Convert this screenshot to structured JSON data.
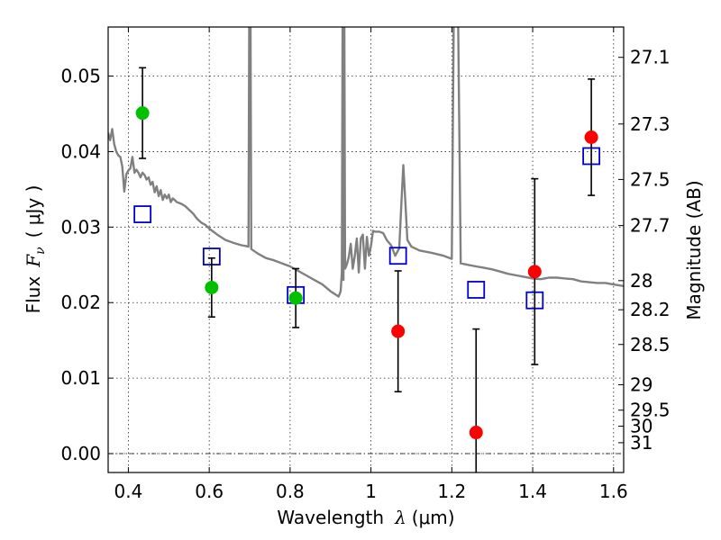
{
  "chart_data": {
    "type": "scatter",
    "xlabel": "Wavelength",
    "xlabel_symbol": "λ",
    "xlabel_unit": "(μm)",
    "ylabel": "Flux",
    "ylabel_symbol": "F",
    "ylabel_subscript": "ν",
    "ylabel_unit": "( μJy )",
    "y2label": "Magnitude (AB)",
    "xlim": [
      0.35,
      1.625
    ],
    "ylim": [
      -0.0025,
      0.0565
    ],
    "grid": true,
    "x_ticks": [
      {
        "value": 0.4,
        "label": "0.4"
      },
      {
        "value": 0.6,
        "label": "0.6"
      },
      {
        "value": 0.8,
        "label": "0.8"
      },
      {
        "value": 1.0,
        "label": "1"
      },
      {
        "value": 1.2,
        "label": "1.2"
      },
      {
        "value": 1.4,
        "label": "1.4"
      },
      {
        "value": 1.6,
        "label": "1.6"
      }
    ],
    "y_ticks": [
      {
        "value": 0.0,
        "label": "0.00"
      },
      {
        "value": 0.01,
        "label": "0.01"
      },
      {
        "value": 0.02,
        "label": "0.02"
      },
      {
        "value": 0.03,
        "label": "0.03"
      },
      {
        "value": 0.04,
        "label": "0.04"
      },
      {
        "value": 0.05,
        "label": "0.05"
      }
    ],
    "y2_ticks": [
      {
        "value": 27.1,
        "label": "27.1"
      },
      {
        "value": 27.3,
        "label": "27.3"
      },
      {
        "value": 27.5,
        "label": "27.5"
      },
      {
        "value": 27.7,
        "label": "27.7"
      },
      {
        "value": 28.0,
        "label": "28"
      },
      {
        "value": 28.2,
        "label": "28.2"
      },
      {
        "value": 28.5,
        "label": "28.5"
      },
      {
        "value": 29.0,
        "label": "29"
      },
      {
        "value": 29.5,
        "label": "29.5"
      },
      {
        "value": 30.0,
        "label": "30"
      },
      {
        "value": 31.0,
        "label": "31"
      }
    ],
    "model_spectrum": {
      "color": "#808080",
      "points": [
        [
          0.35,
          0.0425
        ],
        [
          0.355,
          0.0415
        ],
        [
          0.36,
          0.043
        ],
        [
          0.365,
          0.041
        ],
        [
          0.37,
          0.04
        ],
        [
          0.375,
          0.0395
        ],
        [
          0.38,
          0.0393
        ],
        [
          0.385,
          0.038
        ],
        [
          0.39,
          0.0347
        ],
        [
          0.395,
          0.037
        ],
        [
          0.4,
          0.0375
        ],
        [
          0.405,
          0.0378
        ],
        [
          0.41,
          0.0393
        ],
        [
          0.415,
          0.0372
        ],
        [
          0.42,
          0.0376
        ],
        [
          0.425,
          0.0372
        ],
        [
          0.43,
          0.0366
        ],
        [
          0.435,
          0.0372
        ],
        [
          0.44,
          0.0369
        ],
        [
          0.445,
          0.0363
        ],
        [
          0.45,
          0.0366
        ],
        [
          0.455,
          0.0356
        ],
        [
          0.46,
          0.036
        ],
        [
          0.465,
          0.0346
        ],
        [
          0.47,
          0.0354
        ],
        [
          0.475,
          0.0341
        ],
        [
          0.48,
          0.0349
        ],
        [
          0.485,
          0.0336
        ],
        [
          0.49,
          0.0343
        ],
        [
          0.495,
          0.0338
        ],
        [
          0.5,
          0.0343
        ],
        [
          0.505,
          0.0333
        ],
        [
          0.51,
          0.0338
        ],
        [
          0.52,
          0.0333
        ],
        [
          0.53,
          0.0331
        ],
        [
          0.54,
          0.0328
        ],
        [
          0.55,
          0.0323
        ],
        [
          0.56,
          0.0318
        ],
        [
          0.57,
          0.0311
        ],
        [
          0.58,
          0.0306
        ],
        [
          0.59,
          0.0303
        ],
        [
          0.6,
          0.0298
        ],
        [
          0.62,
          0.029
        ],
        [
          0.64,
          0.0283
        ],
        [
          0.66,
          0.0279
        ],
        [
          0.68,
          0.0276
        ],
        [
          0.69,
          0.0275
        ],
        [
          0.697,
          0.0274
        ],
        [
          0.699,
          0.06
        ],
        [
          0.702,
          0.06
        ],
        [
          0.704,
          0.0271
        ],
        [
          0.72,
          0.0265
        ],
        [
          0.74,
          0.0259
        ],
        [
          0.76,
          0.0256
        ],
        [
          0.78,
          0.0252
        ],
        [
          0.8,
          0.0248
        ],
        [
          0.82,
          0.0242
        ],
        [
          0.84,
          0.0236
        ],
        [
          0.86,
          0.023
        ],
        [
          0.88,
          0.0224
        ],
        [
          0.9,
          0.0215
        ],
        [
          0.92,
          0.0208
        ],
        [
          0.925,
          0.0215
        ],
        [
          0.928,
          0.024
        ],
        [
          0.93,
          0.06
        ],
        [
          0.932,
          0.023
        ],
        [
          0.934,
          0.06
        ],
        [
          0.936,
          0.0245
        ],
        [
          0.94,
          0.025
        ],
        [
          0.945,
          0.026
        ],
        [
          0.95,
          0.0278
        ],
        [
          0.955,
          0.0245
        ],
        [
          0.96,
          0.0262
        ],
        [
          0.965,
          0.0285
        ],
        [
          0.97,
          0.024
        ],
        [
          0.975,
          0.0285
        ],
        [
          0.98,
          0.029
        ],
        [
          0.985,
          0.0245
        ],
        [
          0.99,
          0.0287
        ],
        [
          0.995,
          0.0262
        ],
        [
          1.0,
          0.0275
        ],
        [
          1.005,
          0.0295
        ],
        [
          1.01,
          0.0294
        ],
        [
          1.02,
          0.0294
        ],
        [
          1.03,
          0.0292
        ],
        [
          1.04,
          0.0282
        ],
        [
          1.05,
          0.0276
        ],
        [
          1.06,
          0.0262
        ],
        [
          1.07,
          0.0272
        ],
        [
          1.075,
          0.033
        ],
        [
          1.08,
          0.0382
        ],
        [
          1.085,
          0.0335
        ],
        [
          1.09,
          0.0283
        ],
        [
          1.1,
          0.0274
        ],
        [
          1.12,
          0.0269
        ],
        [
          1.15,
          0.0266
        ],
        [
          1.18,
          0.0262
        ],
        [
          1.2,
          0.0258
        ],
        [
          1.205,
          0.06
        ],
        [
          1.215,
          0.06
        ],
        [
          1.222,
          0.0252
        ],
        [
          1.24,
          0.025
        ],
        [
          1.26,
          0.0248
        ],
        [
          1.28,
          0.0246
        ],
        [
          1.3,
          0.0244
        ],
        [
          1.32,
          0.0241
        ],
        [
          1.34,
          0.0238
        ],
        [
          1.36,
          0.0236
        ],
        [
          1.38,
          0.0234
        ],
        [
          1.4,
          0.0232
        ],
        [
          1.42,
          0.0231
        ],
        [
          1.44,
          0.0233
        ],
        [
          1.46,
          0.0233
        ],
        [
          1.48,
          0.0232
        ],
        [
          1.5,
          0.0231
        ],
        [
          1.52,
          0.0228
        ],
        [
          1.54,
          0.0227
        ],
        [
          1.56,
          0.0226
        ],
        [
          1.58,
          0.0226
        ],
        [
          1.6,
          0.0224
        ],
        [
          1.625,
          0.0222
        ]
      ]
    },
    "series": [
      {
        "marker": "circle",
        "color": "#00c000",
        "points": [
          {
            "x": 0.435,
            "y": 0.0451,
            "err": 0.006
          },
          {
            "x": 0.606,
            "y": 0.022,
            "err": 0.0039
          },
          {
            "x": 0.814,
            "y": 0.0206,
            "err": 0.0039
          }
        ]
      },
      {
        "marker": "circle",
        "color": "#ff0000",
        "points": [
          {
            "x": 1.067,
            "y": 0.0162,
            "err": 0.008
          },
          {
            "x": 1.26,
            "y": 0.0028,
            "err": 0.0137
          },
          {
            "x": 1.405,
            "y": 0.0241,
            "err": 0.0123
          },
          {
            "x": 1.545,
            "y": 0.0419,
            "err": 0.0077
          }
        ]
      },
      {
        "marker": "square-open",
        "color": "#0000cc",
        "points": [
          {
            "x": 0.435,
            "y": 0.0317
          },
          {
            "x": 0.606,
            "y": 0.0261
          },
          {
            "x": 0.814,
            "y": 0.021
          },
          {
            "x": 1.067,
            "y": 0.0262
          },
          {
            "x": 1.26,
            "y": 0.0217
          },
          {
            "x": 1.405,
            "y": 0.0203
          },
          {
            "x": 1.545,
            "y": 0.0394
          }
        ]
      }
    ]
  }
}
